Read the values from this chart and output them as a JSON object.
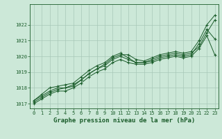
{
  "background_color": "#cce8d8",
  "plot_bg_color": "#cce8d8",
  "grid_color": "#a8c8b8",
  "line_color": "#1a5c2a",
  "marker_color": "#1a5c2a",
  "xlabel": "Graphe pression niveau de la mer (hPa)",
  "xlabel_fontsize": 6.5,
  "xlabel_bold": true,
  "ylim": [
    1016.7,
    1023.3
  ],
  "xlim": [
    -0.5,
    23.5
  ],
  "yticks": [
    1017,
    1018,
    1019,
    1020,
    1021,
    1022
  ],
  "xticks": [
    0,
    1,
    2,
    3,
    4,
    5,
    6,
    7,
    8,
    9,
    10,
    11,
    12,
    13,
    14,
    15,
    16,
    17,
    18,
    19,
    20,
    21,
    22,
    23
  ],
  "tick_fontsize": 5.0,
  "series": [
    [
      1017.2,
      1017.5,
      1017.8,
      1018.0,
      1018.0,
      1018.2,
      1018.5,
      1018.9,
      1019.2,
      1019.5,
      1019.9,
      1020.1,
      1020.1,
      1019.8,
      1019.7,
      1019.9,
      1020.1,
      1020.2,
      1020.3,
      1020.2,
      1020.3,
      1021.0,
      1022.0,
      1022.6
    ],
    [
      1017.2,
      1017.6,
      1018.0,
      1018.1,
      1018.2,
      1018.3,
      1018.7,
      1019.1,
      1019.4,
      1019.6,
      1020.0,
      1020.2,
      1019.9,
      1019.6,
      1019.6,
      1019.8,
      1020.0,
      1020.1,
      1020.2,
      1020.1,
      1020.2,
      1020.6,
      1021.5,
      1022.3
    ],
    [
      1017.1,
      1017.4,
      1017.7,
      1017.9,
      1018.0,
      1018.1,
      1018.5,
      1018.9,
      1019.2,
      1019.4,
      1019.8,
      1020.0,
      1019.8,
      1019.6,
      1019.6,
      1019.7,
      1019.9,
      1020.0,
      1020.1,
      1020.0,
      1020.1,
      1020.8,
      1021.7,
      1021.1
    ],
    [
      1017.0,
      1017.3,
      1017.6,
      1017.8,
      1017.8,
      1018.0,
      1018.3,
      1018.7,
      1019.0,
      1019.2,
      1019.6,
      1019.8,
      1019.6,
      1019.5,
      1019.5,
      1019.6,
      1019.8,
      1019.9,
      1020.0,
      1019.9,
      1020.0,
      1020.5,
      1021.3,
      1020.1
    ]
  ]
}
